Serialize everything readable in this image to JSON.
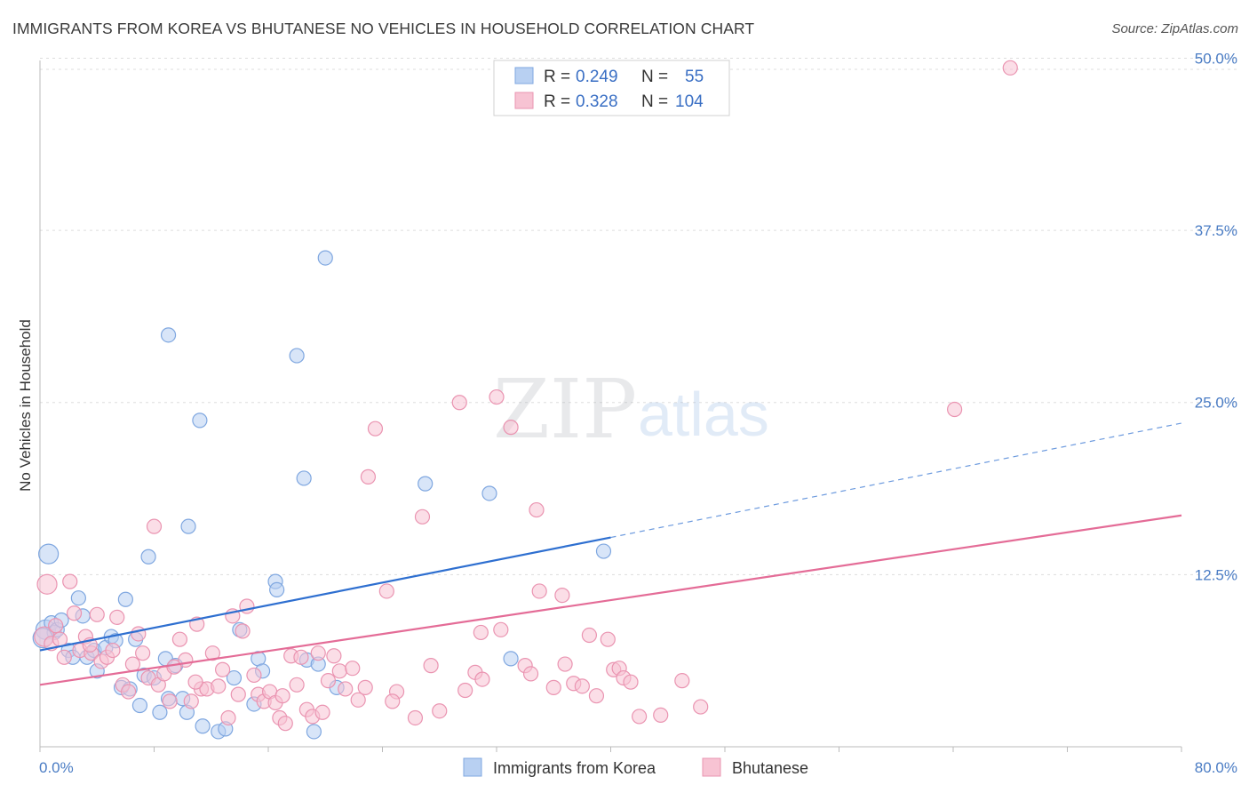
{
  "header": {
    "title": "IMMIGRANTS FROM KOREA VS BHUTANESE NO VEHICLES IN HOUSEHOLD CORRELATION CHART",
    "source": "Source: ZipAtlas.com"
  },
  "watermark": {
    "zip": "ZIP",
    "atlas": "atlas"
  },
  "legend": {
    "rows": [
      {
        "r_label": "R =",
        "r_value": "0.249",
        "n_label": "N =",
        "n_value": "55"
      },
      {
        "r_label": "R =",
        "r_value": "0.328",
        "n_label": "N =",
        "n_value": "104"
      }
    ]
  },
  "colors": {
    "korea_fill": "#b8d0f2",
    "korea_stroke": "#7fa7e0",
    "korea_line": "#2e6fd0",
    "bhutan_fill": "#f7c3d3",
    "bhutan_stroke": "#ea94b1",
    "bhutan_line": "#e46c97",
    "grid": "#dddddd",
    "tick_label": "#4a7cc4"
  },
  "chart_data": {
    "type": "scatter",
    "title": "IMMIGRANTS FROM KOREA VS BHUTANESE NO VEHICLES IN HOUSEHOLD CORRELATION CHART",
    "xlabel": "",
    "ylabel": "No Vehicles in Household",
    "xlim": [
      0,
      80
    ],
    "ylim": [
      0,
      51
    ],
    "x_tick_labels": [
      "0.0%",
      "80.0%"
    ],
    "y_ticks": [
      12.5,
      25.0,
      37.5,
      50.0
    ],
    "y_tick_labels": [
      "12.5%",
      "25.0%",
      "37.5%",
      "50.0%"
    ],
    "grid": true,
    "legend_position": "top-center and bottom",
    "series": [
      {
        "name": "Immigrants from Korea",
        "r": 0.249,
        "n": 55,
        "trend": {
          "x0": 0,
          "y0": 7.0,
          "x1": 40,
          "y1": 15.2,
          "dashed_to_x": 80,
          "dashed_to_y": 23.5
        },
        "points": [
          [
            0.4,
            8.5
          ],
          [
            0.6,
            14.0
          ],
          [
            0.8,
            9.0
          ],
          [
            1.0,
            8.3
          ],
          [
            1.2,
            8.5
          ],
          [
            1.5,
            9.2
          ],
          [
            2.0,
            7.0
          ],
          [
            2.3,
            6.5
          ],
          [
            2.7,
            10.8
          ],
          [
            3.0,
            9.5
          ],
          [
            3.3,
            6.5
          ],
          [
            3.8,
            7.0
          ],
          [
            4.0,
            5.5
          ],
          [
            4.6,
            7.2
          ],
          [
            5.0,
            8.0
          ],
          [
            5.3,
            7.7
          ],
          [
            5.7,
            4.3
          ],
          [
            6.0,
            10.7
          ],
          [
            6.3,
            4.2
          ],
          [
            6.7,
            7.8
          ],
          [
            7.0,
            3.0
          ],
          [
            7.3,
            5.2
          ],
          [
            7.6,
            13.8
          ],
          [
            8.0,
            5.0
          ],
          [
            8.4,
            2.5
          ],
          [
            8.8,
            6.4
          ],
          [
            9.0,
            3.5
          ],
          [
            9.5,
            5.9
          ],
          [
            9.0,
            29.9
          ],
          [
            10.0,
            3.5
          ],
          [
            10.3,
            2.5
          ],
          [
            10.4,
            16.0
          ],
          [
            11.2,
            23.7
          ],
          [
            11.4,
            1.5
          ],
          [
            12.5,
            1.1
          ],
          [
            13.0,
            1.3
          ],
          [
            13.6,
            5.0
          ],
          [
            14.0,
            8.5
          ],
          [
            15.0,
            3.1
          ],
          [
            15.3,
            6.4
          ],
          [
            15.6,
            5.5
          ],
          [
            16.5,
            12.0
          ],
          [
            16.6,
            11.4
          ],
          [
            18.0,
            28.4
          ],
          [
            18.5,
            19.5
          ],
          [
            18.7,
            6.3
          ],
          [
            19.2,
            1.1
          ],
          [
            19.5,
            6.0
          ],
          [
            20.0,
            35.5
          ],
          [
            20.8,
            4.3
          ],
          [
            27.0,
            19.1
          ],
          [
            31.5,
            18.4
          ],
          [
            33.0,
            6.4
          ],
          [
            39.5,
            14.2
          ],
          [
            0.2,
            7.9
          ]
        ]
      },
      {
        "name": "Bhutanese",
        "r": 0.328,
        "n": 104,
        "trend": {
          "x0": 0,
          "y0": 4.5,
          "x1": 80,
          "y1": 16.8
        },
        "points": [
          [
            0.3,
            8.0
          ],
          [
            0.5,
            11.8
          ],
          [
            0.8,
            7.5
          ],
          [
            1.1,
            8.8
          ],
          [
            1.4,
            7.8
          ],
          [
            1.7,
            6.5
          ],
          [
            2.1,
            12.0
          ],
          [
            2.4,
            9.7
          ],
          [
            2.8,
            7.0
          ],
          [
            3.2,
            8.0
          ],
          [
            3.6,
            6.8
          ],
          [
            4.0,
            9.6
          ],
          [
            4.3,
            6.2
          ],
          [
            4.7,
            6.5
          ],
          [
            5.1,
            7.0
          ],
          [
            5.4,
            9.4
          ],
          [
            5.8,
            4.5
          ],
          [
            6.2,
            4.0
          ],
          [
            6.5,
            6.0
          ],
          [
            6.9,
            8.2
          ],
          [
            7.2,
            6.8
          ],
          [
            7.6,
            5.0
          ],
          [
            8.0,
            16.0
          ],
          [
            8.3,
            4.5
          ],
          [
            8.7,
            5.3
          ],
          [
            9.1,
            3.3
          ],
          [
            9.4,
            5.8
          ],
          [
            9.8,
            7.8
          ],
          [
            10.2,
            6.3
          ],
          [
            10.6,
            3.3
          ],
          [
            11.0,
            8.9
          ],
          [
            11.3,
            4.2
          ],
          [
            11.7,
            4.2
          ],
          [
            12.1,
            6.8
          ],
          [
            12.5,
            4.4
          ],
          [
            12.8,
            5.6
          ],
          [
            13.2,
            2.1
          ],
          [
            13.5,
            9.5
          ],
          [
            13.9,
            3.8
          ],
          [
            14.2,
            8.4
          ],
          [
            14.5,
            10.2
          ],
          [
            15.0,
            5.2
          ],
          [
            15.3,
            3.8
          ],
          [
            15.7,
            3.3
          ],
          [
            16.1,
            4.0
          ],
          [
            16.5,
            3.2
          ],
          [
            16.8,
            2.1
          ],
          [
            17.2,
            1.7
          ],
          [
            17.6,
            6.6
          ],
          [
            18.0,
            4.5
          ],
          [
            18.3,
            6.5
          ],
          [
            18.7,
            2.7
          ],
          [
            19.1,
            2.2
          ],
          [
            19.5,
            6.8
          ],
          [
            19.8,
            2.5
          ],
          [
            20.2,
            4.8
          ],
          [
            20.6,
            6.6
          ],
          [
            21.0,
            5.5
          ],
          [
            21.4,
            4.2
          ],
          [
            21.9,
            5.7
          ],
          [
            22.3,
            3.4
          ],
          [
            22.8,
            4.3
          ],
          [
            23.5,
            23.1
          ],
          [
            24.3,
            11.3
          ],
          [
            25.0,
            4.0
          ],
          [
            23.0,
            19.6
          ],
          [
            26.3,
            2.1
          ],
          [
            26.8,
            16.7
          ],
          [
            27.4,
            5.9
          ],
          [
            28.0,
            2.6
          ],
          [
            29.4,
            25.0
          ],
          [
            29.8,
            4.1
          ],
          [
            30.5,
            5.4
          ],
          [
            30.9,
            8.3
          ],
          [
            32.0,
            25.4
          ],
          [
            32.3,
            8.5
          ],
          [
            33.0,
            23.2
          ],
          [
            34.0,
            5.9
          ],
          [
            34.4,
            5.3
          ],
          [
            34.8,
            17.2
          ],
          [
            35.0,
            11.3
          ],
          [
            36.0,
            4.3
          ],
          [
            36.6,
            11.0
          ],
          [
            37.4,
            4.6
          ],
          [
            38.0,
            4.4
          ],
          [
            38.5,
            8.1
          ],
          [
            39.0,
            3.7
          ],
          [
            39.8,
            7.8
          ],
          [
            40.2,
            5.6
          ],
          [
            40.6,
            5.7
          ],
          [
            40.9,
            5.0
          ],
          [
            41.4,
            4.7
          ],
          [
            42.0,
            2.2
          ],
          [
            43.5,
            2.3
          ],
          [
            45.0,
            4.8
          ],
          [
            46.3,
            2.9
          ],
          [
            64.1,
            24.5
          ],
          [
            68.0,
            49.3
          ],
          [
            3.5,
            7.4
          ],
          [
            10.9,
            4.7
          ],
          [
            24.7,
            3.3
          ],
          [
            31.0,
            4.9
          ],
          [
            36.8,
            6.0
          ],
          [
            17.0,
            3.7
          ]
        ]
      }
    ]
  },
  "bottom_legend": {
    "items": [
      {
        "label": "Immigrants from Korea"
      },
      {
        "label": "Bhutanese"
      }
    ]
  }
}
